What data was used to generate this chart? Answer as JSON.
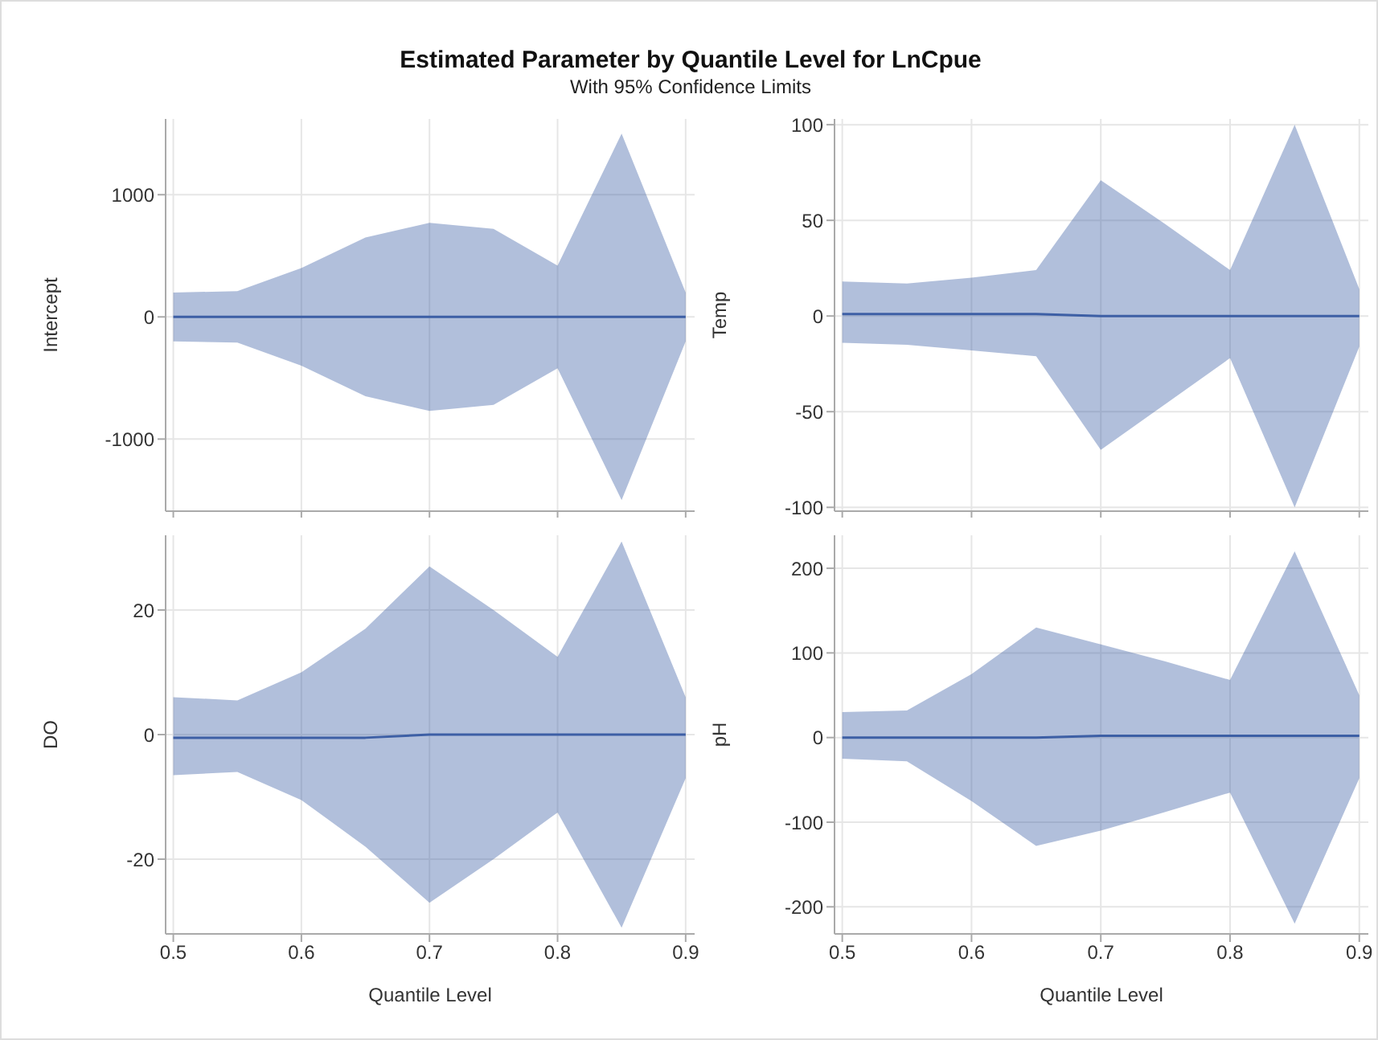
{
  "chart_data": [
    {
      "type": "line",
      "title": "Estimated Parameter by Quantile Level for LnCpue",
      "subtitle": "With 95% Confidence Limits",
      "ylabel": "Intercept",
      "x": [
        0.5,
        0.55,
        0.6,
        0.65,
        0.7,
        0.75,
        0.8,
        0.85,
        0.9
      ],
      "xlim": [
        0.494,
        0.907
      ],
      "xticks": [
        0.5,
        0.6,
        0.7,
        0.8,
        0.9
      ],
      "ylim": [
        -1590,
        1620
      ],
      "yticks": [
        -1000,
        0,
        1000
      ],
      "grid": true,
      "tick_labels": "y",
      "series": [
        {
          "color": "#3d5fa5",
          "values": [
            0,
            0,
            0,
            0,
            0,
            0,
            0,
            0,
            0
          ],
          "lower": [
            -200,
            -210,
            -400,
            -650,
            -770,
            -720,
            -420,
            -1500,
            -200
          ],
          "upper": [
            200,
            210,
            400,
            650,
            770,
            720,
            420,
            1500,
            200
          ]
        }
      ]
    },
    {
      "type": "line",
      "ylabel": "Temp",
      "x": [
        0.5,
        0.55,
        0.6,
        0.65,
        0.7,
        0.75,
        0.8,
        0.85,
        0.9
      ],
      "xlim": [
        0.494,
        0.907
      ],
      "xticks": [
        0.5,
        0.6,
        0.7,
        0.8,
        0.9
      ],
      "ylim": [
        -102,
        103
      ],
      "yticks": [
        -100,
        -50,
        0,
        50,
        100
      ],
      "grid": true,
      "tick_labels": "y",
      "series": [
        {
          "color": "#3d5fa5",
          "values": [
            1,
            1,
            1,
            1,
            0,
            0,
            0,
            0,
            0
          ],
          "lower": [
            -14,
            -15,
            -18,
            -21,
            -70,
            -46,
            -22,
            -100,
            -16
          ],
          "upper": [
            18,
            17,
            20,
            24,
            71,
            48,
            24,
            100,
            14
          ]
        }
      ]
    },
    {
      "type": "line",
      "ylabel": "DO",
      "xlabel": "Quantile Level",
      "x": [
        0.5,
        0.55,
        0.6,
        0.65,
        0.7,
        0.75,
        0.8,
        0.85,
        0.9
      ],
      "xlim": [
        0.494,
        0.907
      ],
      "xticks": [
        0.5,
        0.6,
        0.7,
        0.8,
        0.9
      ],
      "ylim": [
        -32,
        32
      ],
      "yticks": [
        -20,
        0,
        20
      ],
      "grid": true,
      "series": [
        {
          "color": "#3d5fa5",
          "values": [
            -0.5,
            -0.5,
            -0.5,
            -0.5,
            0,
            0,
            0,
            0,
            0
          ],
          "lower": [
            -6.5,
            -6,
            -10.5,
            -18,
            -27,
            -20,
            -12.5,
            -31,
            -7
          ],
          "upper": [
            6,
            5.5,
            10,
            17,
            27,
            20,
            12.5,
            31,
            6
          ]
        }
      ]
    },
    {
      "type": "line",
      "ylabel": "pH",
      "xlabel": "Quantile Level",
      "x": [
        0.5,
        0.55,
        0.6,
        0.65,
        0.7,
        0.75,
        0.8,
        0.85,
        0.9
      ],
      "xlim": [
        0.494,
        0.907
      ],
      "xticks": [
        0.5,
        0.6,
        0.7,
        0.8,
        0.9
      ],
      "ylim": [
        -232,
        239
      ],
      "yticks": [
        -200,
        -100,
        0,
        100,
        200
      ],
      "grid": true,
      "series": [
        {
          "color": "#3d5fa5",
          "values": [
            0,
            0,
            0,
            0,
            2,
            2,
            2,
            2,
            2
          ],
          "lower": [
            -25,
            -28,
            -75,
            -128,
            -110,
            -88,
            -65,
            -220,
            -48
          ],
          "upper": [
            30,
            32,
            75,
            130,
            110,
            90,
            68,
            220,
            50
          ]
        }
      ]
    }
  ]
}
